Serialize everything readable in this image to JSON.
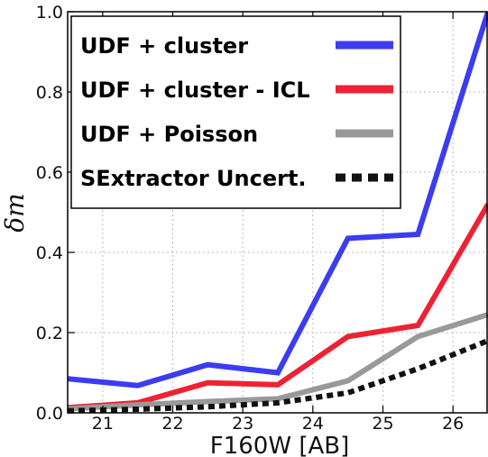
{
  "chart_data": {
    "type": "line",
    "xlabel": "F160W [AB]",
    "ylabel": "δm",
    "xlim": [
      20.5,
      26.5
    ],
    "ylim": [
      0.0,
      1.0
    ],
    "xticks": [
      21,
      22,
      23,
      24,
      25,
      26
    ],
    "yticks": [
      0.0,
      0.2,
      0.4,
      0.6,
      0.8,
      1.0
    ],
    "xtick_labels": [
      "21",
      "22",
      "23",
      "24",
      "25",
      "26"
    ],
    "ytick_labels": [
      "0.0",
      "0.2",
      "0.4",
      "0.6",
      "0.8",
      "1.0"
    ],
    "grid": true,
    "legend_position": "top-left",
    "x": [
      20.5,
      21.5,
      22.5,
      23.5,
      24.5,
      25.5,
      26.5
    ],
    "series": [
      {
        "name": "UDF + cluster",
        "color": "#3c3cf0",
        "style": "solid",
        "values": [
          0.085,
          0.068,
          0.12,
          0.1,
          0.435,
          0.445,
          1.0
        ]
      },
      {
        "name": "UDF + cluster - ICL",
        "color": "#ee2233",
        "style": "solid",
        "values": [
          0.013,
          0.025,
          0.075,
          0.07,
          0.19,
          0.218,
          0.52
        ]
      },
      {
        "name": "UDF + Poisson",
        "color": "#999999",
        "style": "solid",
        "values": [
          0.01,
          0.02,
          0.028,
          0.035,
          0.08,
          0.19,
          0.245
        ]
      },
      {
        "name": "SExtractor Uncert.",
        "color": "#111111",
        "style": "dashed",
        "values": [
          0.005,
          0.009,
          0.015,
          0.025,
          0.05,
          0.11,
          0.18
        ]
      }
    ]
  }
}
